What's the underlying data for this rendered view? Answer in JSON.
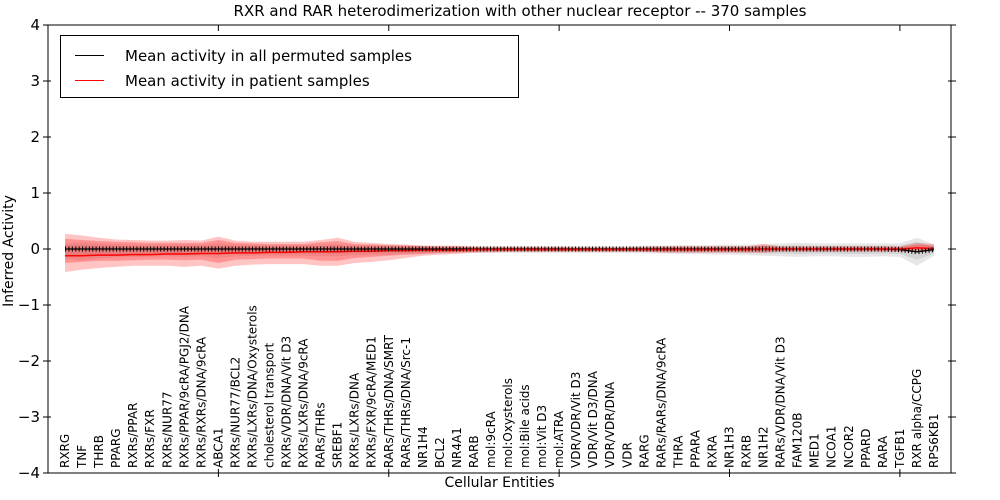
{
  "figure": {
    "title": "RXR and RAR heterodimerization with other nuclear receptor -- 370 samples",
    "xlabel": "Cellular Entities",
    "ylabel": "Inferred Activity"
  },
  "legend": {
    "items": [
      {
        "label": "Mean activity in all permuted samples",
        "color": "#000000"
      },
      {
        "label": "Mean activity in patient samples",
        "color": "#ff0000"
      }
    ]
  },
  "chart_data": {
    "type": "line",
    "title": "RXR and RAR heterodimerization with other nuclear receptor -- 370 samples",
    "xlabel": "Cellular Entities",
    "ylabel": "Inferred Activity",
    "ylim": [
      -4,
      4
    ],
    "grid": false,
    "legend_position": "upper left",
    "yticks": [
      {
        "value": 4,
        "label": "4"
      },
      {
        "value": 3,
        "label": "3"
      },
      {
        "value": 2,
        "label": "2"
      },
      {
        "value": 1,
        "label": "1"
      },
      {
        "value": 0,
        "label": "0"
      },
      {
        "value": -1,
        "label": "−1"
      },
      {
        "value": -2,
        "label": "−2"
      },
      {
        "value": -3,
        "label": "−3"
      },
      {
        "value": -4,
        "label": "−4"
      }
    ],
    "xticks_major_positions": [
      10,
      20,
      30,
      40,
      50
    ],
    "categories": [
      "RXRG",
      "TNF",
      "THRB",
      "PPARG",
      "RXRs/PPAR",
      "RXRs/FXR",
      "RXRs/NUR77",
      "RXRs/PPAR/9cRA/PGJ2/DNA",
      "RXRs/RXRs/DNA/9cRA",
      "ABCA1",
      "RXRs/NUR77/BCL2",
      "RXRs/LXRs/DNA/Oxysterols",
      "cholesterol transport",
      "RXRs/VDR/DNA/Vit D3",
      "RXRs/LXRs/DNA/9cRA",
      "RARs/THRs",
      "SREBF1",
      "RXRs/LXRs/DNA",
      "RXRs/FXR/9cRA/MED1",
      "RARs/THRs/DNA/SMRT",
      "RARs/THRs/DNA/Src-1",
      "NR1H4",
      "BCL2",
      "NR4A1",
      "RARB",
      "mol:9cRA",
      "mol:Oxysterols",
      "mol:Bile acids",
      "mol:Vit D3",
      "mol:ATRA",
      "VDR/VDR/Vit D3",
      "VDR/Vit D3/DNA",
      "VDR/VDR/DNA",
      "VDR",
      "RARG",
      "RARs/RARs/DNA/9cRA",
      "THRA",
      "PPARA",
      "RXRA",
      "NR1H3",
      "RXRB",
      "NR1H2",
      "RARs/VDR/DNA/Vit D3",
      "FAM120B",
      "MED1",
      "NCOA1",
      "NCOR2",
      "PPARD",
      "RARA",
      "TGFB1",
      "RXR alpha/CCPG",
      "RPS6KB1"
    ],
    "series": [
      {
        "name": "Mean activity in all permuted samples",
        "color": "#000000",
        "marker": "vertical-tick-comb",
        "values": [
          0,
          0,
          0,
          0,
          0,
          0,
          0,
          0,
          0,
          0,
          0,
          0,
          0,
          0,
          0,
          0,
          0,
          0,
          0,
          0,
          0,
          0,
          0,
          0,
          0,
          0,
          0,
          0,
          0,
          0,
          0,
          0,
          0,
          0,
          0,
          0,
          0,
          0,
          0,
          0,
          0,
          0,
          0,
          0,
          0,
          0,
          0,
          0,
          0,
          -0.01,
          -0.05,
          -0.01
        ]
      },
      {
        "name": "Mean activity in patient samples",
        "color": "#ff0000",
        "marker": "none",
        "values": [
          -0.12,
          -0.12,
          -0.11,
          -0.11,
          -0.1,
          -0.1,
          -0.09,
          -0.09,
          -0.08,
          -0.08,
          -0.07,
          -0.07,
          -0.06,
          -0.06,
          -0.05,
          -0.05,
          -0.05,
          -0.04,
          -0.04,
          -0.03,
          -0.03,
          -0.02,
          -0.02,
          -0.02,
          -0.01,
          -0.01,
          -0.01,
          -0.01,
          -0.01,
          -0.01,
          -0.01,
          -0.01,
          -0.01,
          -0.01,
          -0.01,
          -0.01,
          -0.01,
          -0.01,
          -0.01,
          -0.01,
          -0.01,
          0.0,
          0.0,
          0.0,
          0.0,
          0.0,
          0.0,
          0.0,
          0.0,
          0.0,
          0.02,
          0.01
        ]
      }
    ],
    "bands": [
      {
        "name": "permuted-spread-outer",
        "color": "rgba(120,120,120,0.18)",
        "top": [
          0.1,
          0.12,
          0.1,
          0.09,
          0.08,
          0.08,
          0.08,
          0.08,
          0.08,
          0.1,
          0.08,
          0.08,
          0.07,
          0.07,
          0.07,
          0.08,
          0.09,
          0.07,
          0.07,
          0.06,
          0.06,
          0.06,
          0.05,
          0.05,
          0.05,
          0.05,
          0.05,
          0.05,
          0.05,
          0.05,
          0.05,
          0.05,
          0.05,
          0.05,
          0.06,
          0.06,
          0.07,
          0.07,
          0.07,
          0.08,
          0.08,
          0.09,
          0.1,
          0.11,
          0.1,
          0.1,
          0.1,
          0.1,
          0.1,
          0.1,
          0.2,
          0.08
        ],
        "bottom": [
          -0.18,
          -0.2,
          -0.17,
          -0.15,
          -0.14,
          -0.14,
          -0.13,
          -0.14,
          -0.13,
          -0.16,
          -0.13,
          -0.12,
          -0.12,
          -0.12,
          -0.12,
          -0.13,
          -0.13,
          -0.11,
          -0.1,
          -0.1,
          -0.09,
          -0.08,
          -0.08,
          -0.07,
          -0.07,
          -0.07,
          -0.07,
          -0.07,
          -0.07,
          -0.07,
          -0.07,
          -0.07,
          -0.07,
          -0.07,
          -0.08,
          -0.08,
          -0.09,
          -0.09,
          -0.1,
          -0.1,
          -0.11,
          -0.12,
          -0.13,
          -0.14,
          -0.13,
          -0.13,
          -0.14,
          -0.14,
          -0.13,
          -0.14,
          -0.3,
          -0.12
        ]
      },
      {
        "name": "permuted-spread-inner",
        "color": "rgba(120,120,120,0.18)",
        "top": [
          0.06,
          0.07,
          0.06,
          0.06,
          0.05,
          0.05,
          0.05,
          0.05,
          0.05,
          0.06,
          0.05,
          0.05,
          0.04,
          0.04,
          0.04,
          0.05,
          0.06,
          0.04,
          0.04,
          0.04,
          0.04,
          0.04,
          0.03,
          0.03,
          0.03,
          0.03,
          0.03,
          0.03,
          0.03,
          0.03,
          0.03,
          0.03,
          0.03,
          0.03,
          0.04,
          0.04,
          0.04,
          0.04,
          0.04,
          0.05,
          0.05,
          0.06,
          0.06,
          0.07,
          0.06,
          0.06,
          0.06,
          0.06,
          0.06,
          0.06,
          0.13,
          0.05
        ],
        "bottom": [
          -0.11,
          -0.12,
          -0.11,
          -0.1,
          -0.09,
          -0.09,
          -0.08,
          -0.09,
          -0.08,
          -0.1,
          -0.08,
          -0.08,
          -0.08,
          -0.08,
          -0.08,
          -0.08,
          -0.08,
          -0.07,
          -0.07,
          -0.06,
          -0.06,
          -0.05,
          -0.05,
          -0.05,
          -0.04,
          -0.04,
          -0.04,
          -0.04,
          -0.04,
          -0.04,
          -0.04,
          -0.04,
          -0.04,
          -0.04,
          -0.05,
          -0.05,
          -0.06,
          -0.06,
          -0.06,
          -0.06,
          -0.07,
          -0.08,
          -0.08,
          -0.09,
          -0.08,
          -0.08,
          -0.09,
          -0.09,
          -0.08,
          -0.09,
          -0.19,
          -0.08
        ]
      },
      {
        "name": "patient-spread-outer",
        "color": "rgba(255,30,30,0.26)",
        "top": [
          0.27,
          0.24,
          0.2,
          0.17,
          0.16,
          0.15,
          0.15,
          0.16,
          0.15,
          0.22,
          0.15,
          0.13,
          0.13,
          0.13,
          0.13,
          0.16,
          0.2,
          0.13,
          0.11,
          0.09,
          0.08,
          0.06,
          0.06,
          0.06,
          0.04,
          0.04,
          0.04,
          0.04,
          0.04,
          0.04,
          0.03,
          0.03,
          0.03,
          0.03,
          0.04,
          0.05,
          0.05,
          0.05,
          0.05,
          0.05,
          0.05,
          0.09,
          0.05,
          0.05,
          0.05,
          0.05,
          0.05,
          0.05,
          0.05,
          0.05,
          0.11,
          0.09
        ],
        "bottom": [
          -0.41,
          -0.37,
          -0.34,
          -0.32,
          -0.3,
          -0.3,
          -0.3,
          -0.32,
          -0.3,
          -0.35,
          -0.3,
          -0.28,
          -0.27,
          -0.27,
          -0.27,
          -0.3,
          -0.3,
          -0.25,
          -0.23,
          -0.2,
          -0.16,
          -0.12,
          -0.1,
          -0.09,
          -0.07,
          -0.06,
          -0.05,
          -0.05,
          -0.05,
          -0.05,
          -0.05,
          -0.05,
          -0.05,
          -0.05,
          -0.05,
          -0.07,
          -0.07,
          -0.07,
          -0.07,
          -0.07,
          -0.07,
          -0.07,
          -0.05,
          -0.05,
          -0.05,
          -0.05,
          -0.05,
          -0.05,
          -0.05,
          -0.05,
          -0.05,
          -0.05
        ]
      },
      {
        "name": "patient-spread-inner",
        "color": "rgba(255,30,30,0.30)",
        "top": [
          0.18,
          0.16,
          0.14,
          0.13,
          0.12,
          0.11,
          0.11,
          0.11,
          0.11,
          0.16,
          0.11,
          0.1,
          0.09,
          0.09,
          0.09,
          0.12,
          0.14,
          0.09,
          0.08,
          0.07,
          0.06,
          0.05,
          0.04,
          0.04,
          0.03,
          0.02,
          0.02,
          0.02,
          0.02,
          0.02,
          0.02,
          0.02,
          0.02,
          0.02,
          0.02,
          0.03,
          0.03,
          0.03,
          0.03,
          0.03,
          0.03,
          0.06,
          0.03,
          0.03,
          0.03,
          0.03,
          0.03,
          0.03,
          0.03,
          0.03,
          0.08,
          0.06
        ],
        "bottom": [
          -0.25,
          -0.23,
          -0.21,
          -0.21,
          -0.2,
          -0.19,
          -0.19,
          -0.2,
          -0.19,
          -0.25,
          -0.19,
          -0.18,
          -0.17,
          -0.17,
          -0.17,
          -0.21,
          -0.21,
          -0.16,
          -0.14,
          -0.12,
          -0.1,
          -0.09,
          -0.07,
          -0.06,
          -0.05,
          -0.04,
          -0.04,
          -0.04,
          -0.04,
          -0.04,
          -0.04,
          -0.04,
          -0.04,
          -0.04,
          -0.04,
          -0.04,
          -0.04,
          -0.04,
          -0.04,
          -0.04,
          -0.04,
          -0.05,
          -0.03,
          -0.03,
          -0.03,
          -0.03,
          -0.03,
          -0.03,
          -0.03,
          -0.03,
          -0.02,
          -0.03
        ]
      }
    ]
  }
}
